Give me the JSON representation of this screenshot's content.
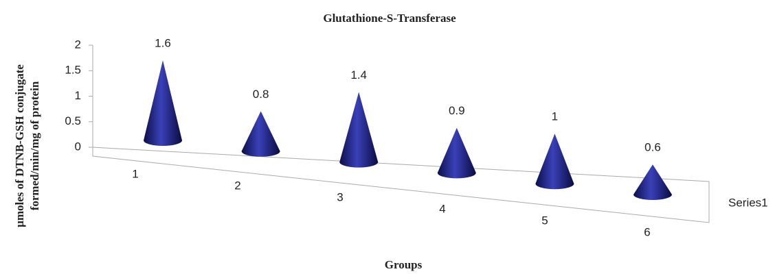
{
  "chart_data": {
    "type": "cone3d",
    "title": "Glutathione-S-Transferase",
    "y_label": [
      "µmoles of DTNB-GSH  conjugate",
      "formed/min/mg of protein"
    ],
    "x_label": "Groups",
    "categories": [
      "1",
      "2",
      "3",
      "4",
      "5",
      "6"
    ],
    "series": [
      {
        "name": "Series1",
        "color": "#1c1f7a",
        "values": [
          1.6,
          0.8,
          1.4,
          0.9,
          1,
          0.6
        ]
      }
    ],
    "ylim": [
      0,
      2
    ],
    "yticks": [
      0,
      0.5,
      1,
      1.5,
      2
    ]
  }
}
